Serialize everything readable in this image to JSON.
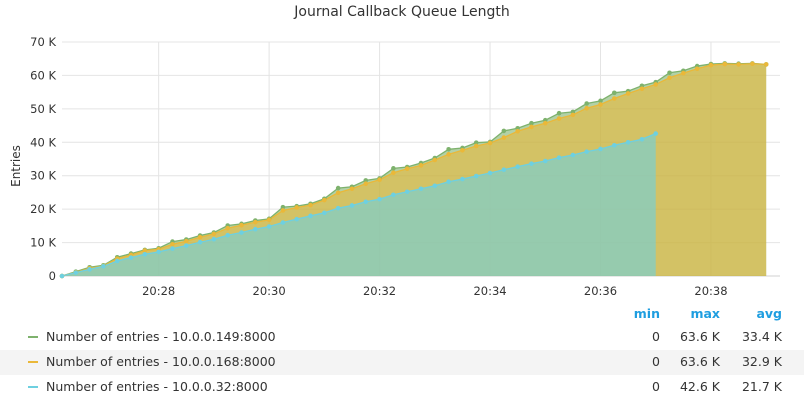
{
  "chart_data": {
    "type": "area",
    "title": "Journal Callback Queue Length",
    "ylabel": "Entries",
    "xlabel": "",
    "ylim": [
      0,
      70000
    ],
    "yticks": [
      0,
      10000,
      20000,
      30000,
      40000,
      50000,
      60000,
      70000
    ],
    "ytick_labels": [
      "0",
      "10 K",
      "20 K",
      "30 K",
      "40 K",
      "50 K",
      "60 K",
      "70 K"
    ],
    "x_time_range": [
      "20:26:15",
      "20:39:15"
    ],
    "xticks": [
      "20:28",
      "20:30",
      "20:32",
      "20:34",
      "20:36",
      "20:38"
    ],
    "grid": true,
    "stacked": false,
    "series": [
      {
        "name": "Number of entries - 10.0.0.149:8000",
        "color": "#7eb26d",
        "x": [
          "20:26:15",
          "20:26:30",
          "20:26:45",
          "20:27:00",
          "20:27:15",
          "20:27:30",
          "20:27:45",
          "20:28:00",
          "20:28:15",
          "20:28:30",
          "20:28:45",
          "20:29:00",
          "20:29:15",
          "20:29:30",
          "20:29:45",
          "20:30:00",
          "20:30:15",
          "20:30:30",
          "20:30:45",
          "20:31:00",
          "20:31:15",
          "20:31:30",
          "20:31:45",
          "20:32:00",
          "20:32:15",
          "20:32:30",
          "20:32:45",
          "20:33:00",
          "20:33:15",
          "20:33:30",
          "20:33:45",
          "20:34:00",
          "20:34:15",
          "20:34:30",
          "20:34:45",
          "20:35:00",
          "20:35:15",
          "20:35:30",
          "20:35:45",
          "20:36:00",
          "20:36:15",
          "20:36:30",
          "20:36:45",
          "20:37:00",
          "20:37:15",
          "20:37:30",
          "20:37:45",
          "20:38:00",
          "20:38:15",
          "20:38:30",
          "20:38:45",
          "20:39:00"
        ],
        "values": [
          0,
          1300,
          2600,
          3200,
          5600,
          6700,
          7800,
          8300,
          10300,
          10900,
          12100,
          13000,
          15100,
          15600,
          16600,
          17100,
          20600,
          20900,
          21600,
          23100,
          26300,
          26700,
          28600,
          29200,
          32200,
          32600,
          33800,
          35300,
          37900,
          38300,
          39900,
          40100,
          43400,
          44200,
          45700,
          46600,
          48700,
          49100,
          51600,
          52400,
          54800,
          55300,
          56900,
          58000,
          60800,
          61400,
          62800,
          63400,
          63600,
          63500,
          63600,
          63300
        ]
      },
      {
        "name": "Number of entries - 10.0.0.168:8000",
        "color": "#eab839",
        "x": [
          "20:26:15",
          "20:26:30",
          "20:26:45",
          "20:27:00",
          "20:27:15",
          "20:27:30",
          "20:27:45",
          "20:28:00",
          "20:28:15",
          "20:28:30",
          "20:28:45",
          "20:29:00",
          "20:29:15",
          "20:29:30",
          "20:29:45",
          "20:30:00",
          "20:30:15",
          "20:30:30",
          "20:30:45",
          "20:31:00",
          "20:31:15",
          "20:31:30",
          "20:31:45",
          "20:32:00",
          "20:32:15",
          "20:32:30",
          "20:32:45",
          "20:33:00",
          "20:33:15",
          "20:33:30",
          "20:33:45",
          "20:34:00",
          "20:34:15",
          "20:34:30",
          "20:34:45",
          "20:35:00",
          "20:35:15",
          "20:35:30",
          "20:35:45",
          "20:36:00",
          "20:36:15",
          "20:36:30",
          "20:36:45",
          "20:37:00",
          "20:37:15",
          "20:37:30",
          "20:37:45",
          "20:38:00",
          "20:38:15",
          "20:38:30",
          "20:38:45",
          "20:39:00"
        ],
        "values": [
          0,
          1100,
          2300,
          3000,
          5200,
          6300,
          7600,
          8000,
          9500,
          10400,
          11600,
          12600,
          14300,
          15200,
          16100,
          16800,
          19600,
          20500,
          21200,
          22700,
          24900,
          26100,
          27600,
          28800,
          30900,
          32100,
          33100,
          34700,
          36400,
          37600,
          38900,
          39800,
          41400,
          43300,
          44600,
          45700,
          47100,
          48200,
          50200,
          51300,
          53100,
          54600,
          56000,
          57300,
          59300,
          60700,
          62000,
          63100,
          63400,
          63300,
          63500,
          63300
        ]
      },
      {
        "name": "Number of entries - 10.0.0.32:8000",
        "color": "#6ed0e0",
        "x": [
          "20:26:15",
          "20:26:30",
          "20:26:45",
          "20:27:00",
          "20:27:15",
          "20:27:30",
          "20:27:45",
          "20:28:00",
          "20:28:15",
          "20:28:30",
          "20:28:45",
          "20:29:00",
          "20:29:15",
          "20:29:30",
          "20:29:45",
          "20:30:00",
          "20:30:15",
          "20:30:30",
          "20:30:45",
          "20:31:00",
          "20:31:15",
          "20:31:30",
          "20:31:45",
          "20:32:00",
          "20:32:15",
          "20:32:30",
          "20:32:45",
          "20:33:00",
          "20:33:15",
          "20:33:30",
          "20:33:45",
          "20:34:00",
          "20:34:15",
          "20:34:30",
          "20:34:45",
          "20:35:00",
          "20:35:15",
          "20:35:30",
          "20:35:45",
          "20:36:00",
          "20:36:15",
          "20:36:30",
          "20:36:45",
          "20:37:00"
        ],
        "values": [
          0,
          1000,
          2000,
          2900,
          4500,
          5500,
          6500,
          7200,
          8200,
          9100,
          10100,
          11000,
          12200,
          13000,
          14000,
          14800,
          16000,
          17000,
          18000,
          18900,
          20300,
          21100,
          22200,
          23000,
          24300,
          25200,
          26100,
          27000,
          28200,
          29000,
          29900,
          30800,
          31800,
          32700,
          33600,
          34400,
          35400,
          36200,
          37200,
          38000,
          39100,
          40000,
          40900,
          42600
        ]
      }
    ],
    "legend": {
      "placement": "bottom",
      "columns": [
        "min",
        "max",
        "avg"
      ],
      "rows": [
        {
          "name": "Number of entries - 10.0.0.149:8000",
          "min": "0",
          "max": "63.6 K",
          "avg": "33.4 K"
        },
        {
          "name": "Number of entries - 10.0.0.168:8000",
          "min": "0",
          "max": "63.6 K",
          "avg": "32.9 K"
        },
        {
          "name": "Number of entries - 10.0.0.32:8000",
          "min": "0",
          "max": "42.6 K",
          "avg": "21.7 K"
        }
      ]
    }
  }
}
